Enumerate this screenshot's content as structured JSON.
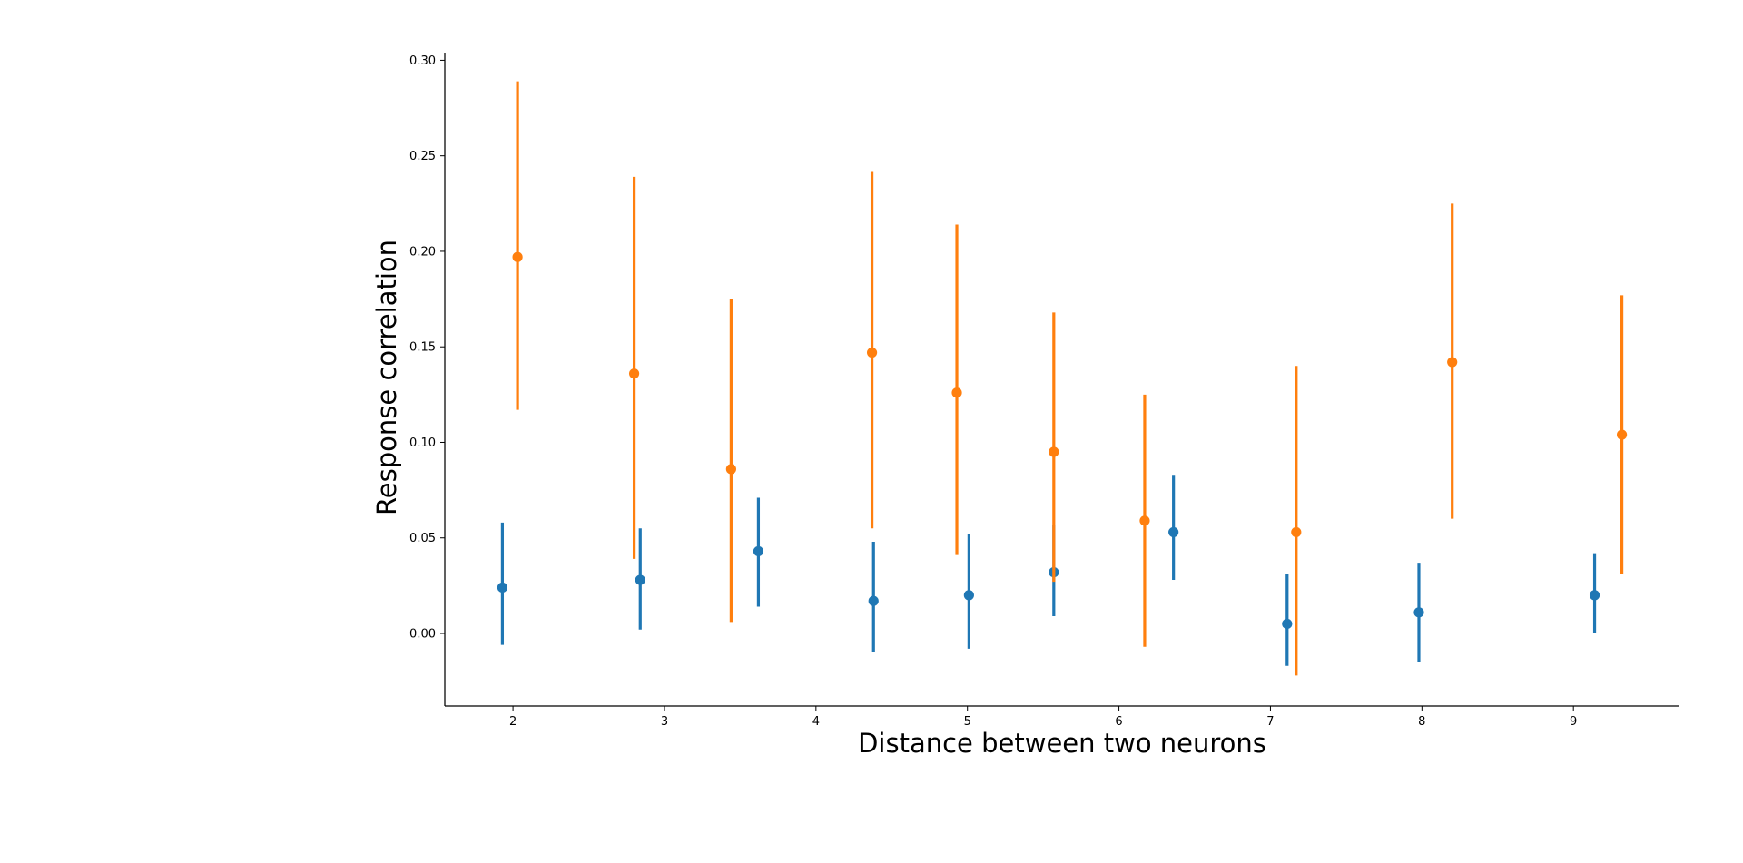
{
  "chart_data": {
    "type": "scatter",
    "title": "",
    "xlabel": "Distance between two neurons",
    "ylabel": "Response correlation",
    "xlim": [
      1.55,
      9.7
    ],
    "ylim": [
      -0.038,
      0.304
    ],
    "xticks": [
      2,
      3,
      4,
      5,
      6,
      7,
      8,
      9
    ],
    "xtick_labels": [
      "2",
      "3",
      "4",
      "5",
      "6",
      "7",
      "8",
      "9"
    ],
    "yticks": [
      0.0,
      0.05,
      0.1,
      0.15,
      0.2,
      0.25,
      0.3
    ],
    "ytick_labels": [
      "0.00",
      "0.05",
      "0.10",
      "0.15",
      "0.20",
      "0.25",
      "0.30"
    ],
    "grid": false,
    "legend": null,
    "error_bars": true,
    "series": [
      {
        "color": "#1f77b4",
        "points": [
          {
            "x": 1.93,
            "y": 0.024,
            "lo": -0.006,
            "hi": 0.058
          },
          {
            "x": 2.84,
            "y": 0.028,
            "lo": 0.002,
            "hi": 0.055
          },
          {
            "x": 3.62,
            "y": 0.043,
            "lo": 0.014,
            "hi": 0.071
          },
          {
            "x": 4.38,
            "y": 0.017,
            "lo": -0.01,
            "hi": 0.048
          },
          {
            "x": 5.01,
            "y": 0.02,
            "lo": -0.008,
            "hi": 0.052
          },
          {
            "x": 5.57,
            "y": 0.032,
            "lo": 0.009,
            "hi": 0.057
          },
          {
            "x": 6.36,
            "y": 0.053,
            "lo": 0.028,
            "hi": 0.083
          },
          {
            "x": 7.11,
            "y": 0.005,
            "lo": -0.017,
            "hi": 0.031
          },
          {
            "x": 7.98,
            "y": 0.011,
            "lo": -0.015,
            "hi": 0.037
          },
          {
            "x": 9.14,
            "y": 0.02,
            "lo": 0.0,
            "hi": 0.042
          }
        ]
      },
      {
        "color": "#ff7f0e",
        "points": [
          {
            "x": 2.03,
            "y": 0.197,
            "lo": 0.117,
            "hi": 0.289
          },
          {
            "x": 2.8,
            "y": 0.136,
            "lo": 0.039,
            "hi": 0.239
          },
          {
            "x": 3.44,
            "y": 0.086,
            "lo": 0.006,
            "hi": 0.175
          },
          {
            "x": 4.37,
            "y": 0.147,
            "lo": 0.055,
            "hi": 0.242
          },
          {
            "x": 4.93,
            "y": 0.126,
            "lo": 0.041,
            "hi": 0.214
          },
          {
            "x": 5.57,
            "y": 0.095,
            "lo": 0.027,
            "hi": 0.168
          },
          {
            "x": 6.17,
            "y": 0.059,
            "lo": -0.007,
            "hi": 0.125
          },
          {
            "x": 7.17,
            "y": 0.053,
            "lo": -0.022,
            "hi": 0.14
          },
          {
            "x": 8.2,
            "y": 0.142,
            "lo": 0.06,
            "hi": 0.225
          },
          {
            "x": 9.32,
            "y": 0.104,
            "lo": 0.031,
            "hi": 0.177
          }
        ]
      }
    ]
  }
}
